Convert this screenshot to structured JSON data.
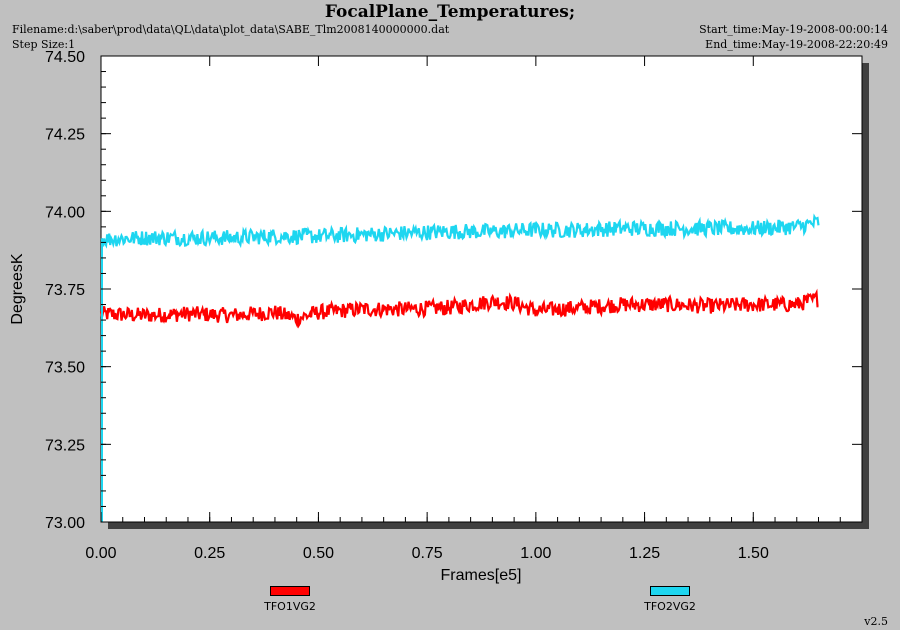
{
  "header": {
    "title": "FocalPlane_Temperatures;",
    "filename": "Filename:d:\\saber\\prod\\data\\QL\\data\\plot_data\\SABE_Tlm2008140000000.dat",
    "step_size": "Step Size:1",
    "start_time": "Start_time:May-19-2008-00:00:14",
    "end_time": "End_time:May-19-2008-22:20:49"
  },
  "version": "v2.5",
  "chart_data": {
    "type": "line",
    "title": "FocalPlane_Temperatures;",
    "xlabel": "Frames[e5]",
    "ylabel": "DegreesK",
    "xlim": [
      0.0,
      1.75
    ],
    "ylim": [
      73.0,
      74.5
    ],
    "xticks": [
      "0.00",
      "0.25",
      "0.50",
      "0.75",
      "1.00",
      "1.25",
      "1.50"
    ],
    "yticks": [
      "73.00",
      "73.25",
      "73.50",
      "73.75",
      "74.00",
      "74.25",
      "74.50"
    ],
    "grid": false,
    "legend_position": "bottom",
    "series": [
      {
        "name": "TFO1VG2",
        "color": "#ff0000",
        "noise": 0.025,
        "x": [
          0.0,
          0.1,
          0.2,
          0.3,
          0.4,
          0.45,
          0.5,
          0.6,
          0.7,
          0.8,
          0.9,
          0.95,
          1.0,
          1.1,
          1.2,
          1.3,
          1.4,
          1.5,
          1.6,
          1.65
        ],
        "values": [
          73.67,
          73.665,
          73.67,
          73.665,
          73.675,
          73.655,
          73.675,
          73.685,
          73.685,
          73.69,
          73.71,
          73.705,
          73.68,
          73.69,
          73.7,
          73.7,
          73.695,
          73.7,
          73.7,
          73.72
        ]
      },
      {
        "name": "TFO2VG2",
        "color": "#1ed6f0",
        "noise": 0.025,
        "x": [
          0.0,
          0.1,
          0.2,
          0.3,
          0.4,
          0.5,
          0.6,
          0.7,
          0.8,
          0.9,
          1.0,
          1.1,
          1.2,
          1.3,
          1.4,
          1.5,
          1.6,
          1.65
        ],
        "values": [
          73.91,
          73.915,
          73.915,
          73.915,
          73.92,
          73.92,
          73.925,
          73.93,
          73.935,
          73.935,
          73.94,
          73.94,
          73.945,
          73.945,
          73.945,
          73.945,
          73.95,
          73.965
        ]
      }
    ]
  }
}
